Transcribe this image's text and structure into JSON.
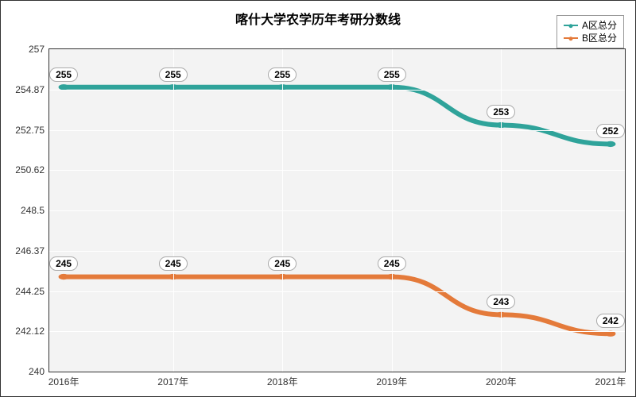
{
  "chart": {
    "type": "line",
    "title": "喀什大学农学历年考研分数线",
    "title_fontsize": 16,
    "background_color": "#ffffff",
    "plot_background": "#f3f3f3",
    "grid_color": "#ffffff",
    "x": {
      "categories": [
        "2016年",
        "2017年",
        "2018年",
        "2019年",
        "2020年",
        "2021年"
      ],
      "positions_pct": [
        2.5,
        21.5,
        40.5,
        59.5,
        78.5,
        97.5
      ]
    },
    "y": {
      "min": 240,
      "max": 257,
      "ticks": [
        240,
        242.12,
        244.25,
        246.37,
        248.5,
        250.62,
        252.75,
        254.87,
        257
      ],
      "tick_labels": [
        "240",
        "242.12",
        "244.25",
        "246.37",
        "248.5",
        "250.62",
        "252.75",
        "254.87",
        "257"
      ]
    },
    "series": [
      {
        "name": "A区总分",
        "color": "#2fa39a",
        "values": [
          255,
          255,
          255,
          255,
          253,
          252
        ],
        "label_y_offset_pct": -4
      },
      {
        "name": "B区总分",
        "color": "#e47a3a",
        "values": [
          245,
          245,
          245,
          245,
          243,
          242
        ],
        "label_y_offset_pct": -4
      }
    ],
    "line_width": 2,
    "marker_radius": 3,
    "label_fontsize": 12
  }
}
